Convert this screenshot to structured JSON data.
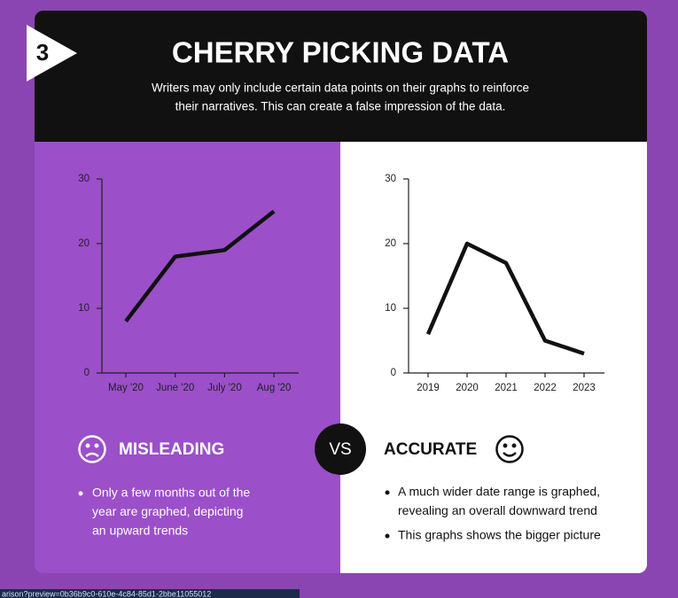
{
  "badge": "3",
  "header": {
    "title": "CHERRY PICKING DATA",
    "subtitle": [
      "Writers may only include certain data points on their graphs to reinforce",
      "their narratives. This can create a false impression of the data."
    ]
  },
  "chart_data": [
    {
      "type": "line",
      "categories": [
        "May '20",
        "June '20",
        "July '20",
        "Aug '20"
      ],
      "values": [
        8,
        18,
        19,
        25
      ],
      "color": "#111111",
      "ylim": [
        0,
        30
      ],
      "yticks": [
        0,
        10,
        20,
        30
      ]
    },
    {
      "type": "line",
      "categories": [
        "2019",
        "2020",
        "2021",
        "2022",
        "2023"
      ],
      "values": [
        6,
        20,
        17,
        5,
        3
      ],
      "color": "#111111",
      "ylim": [
        0,
        30
      ],
      "yticks": [
        0,
        10,
        20,
        30
      ]
    }
  ],
  "left": {
    "heading": "MISLEADING",
    "bullets": [
      [
        "Only a few months out of the",
        "year are graphed, depicting",
        "an upward trends"
      ]
    ]
  },
  "vs": "VS",
  "right": {
    "heading": "ACCURATE",
    "bullets": [
      [
        "A much wider date range is graphed,",
        "revealing an overall downward trend"
      ],
      [
        "This graphs shows the bigger picture"
      ]
    ]
  },
  "status_url": "arison?preview=0b36b9c0-610e-4c84-85d1-2bbe11055012"
}
